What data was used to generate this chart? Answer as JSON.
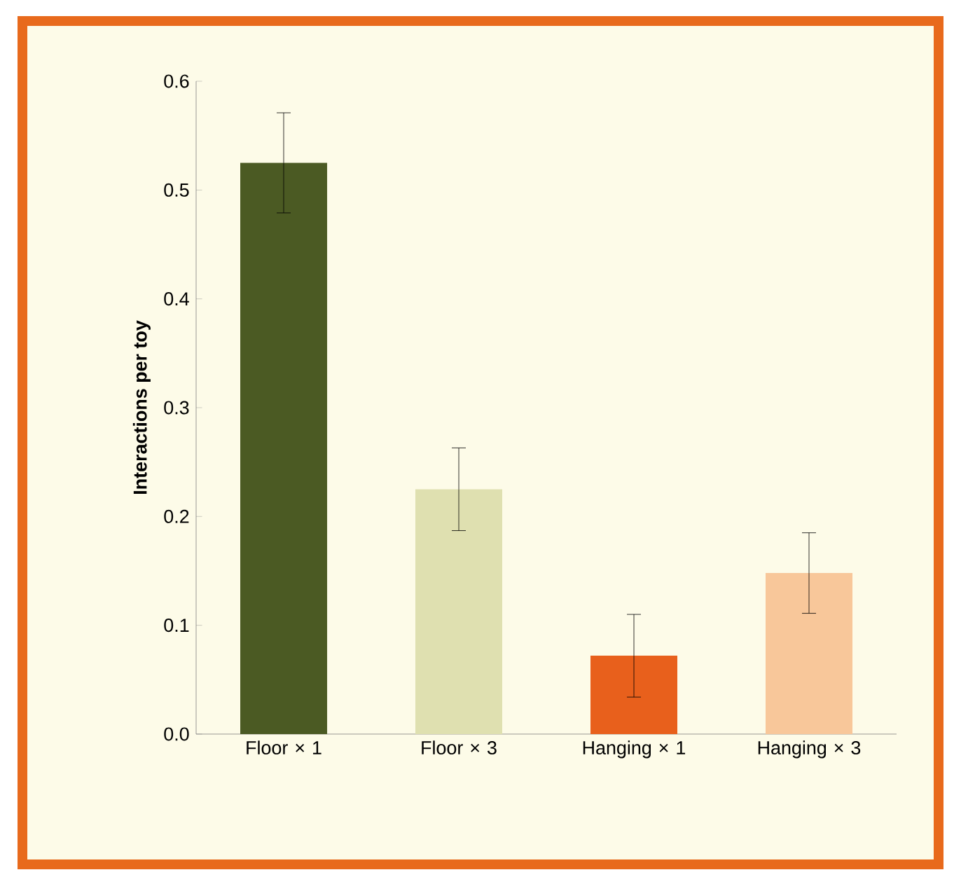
{
  "chart_data": {
    "type": "bar",
    "ylabel": "Interactions per toy",
    "categories": [
      "Floor × 1",
      "Floor × 3",
      "Hanging × 1",
      "Hanging × 3"
    ],
    "values": [
      0.525,
      0.225,
      0.072,
      0.148
    ],
    "errors": [
      0.046,
      0.038,
      0.038,
      0.037
    ],
    "colors": [
      "#4b5a23",
      "#dfe0b0",
      "#e8601c",
      "#f8c79a"
    ],
    "ylim": [
      0,
      0.6
    ],
    "yticks": [
      {
        "value": 0,
        "label": "0.0"
      },
      {
        "value": 0.1,
        "label": "0.1"
      },
      {
        "value": 0.2,
        "label": "0.2"
      },
      {
        "value": 0.3,
        "label": "0.3"
      },
      {
        "value": 0.4,
        "label": "0.4"
      },
      {
        "value": 0.5,
        "label": "0.5"
      },
      {
        "value": 0.6,
        "label": "0.6"
      }
    ],
    "grid": false
  }
}
